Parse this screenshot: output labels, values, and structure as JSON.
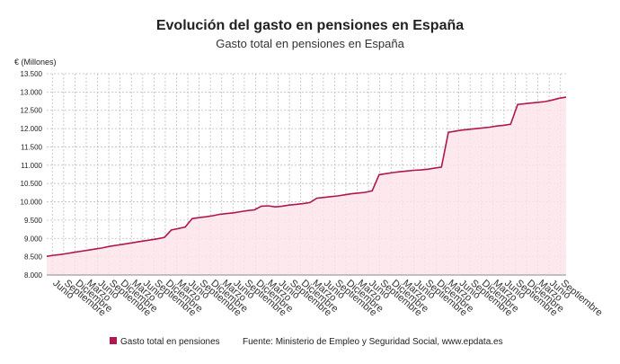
{
  "chart_data": {
    "type": "area",
    "title": "Evolución del gasto en pensiones en España",
    "subtitle": "Gasto total en pensiones en España",
    "ylabel": "€ (Millones)",
    "xlabel": "",
    "ylim": [
      8000,
      13500
    ],
    "yticks": [
      "8.000",
      "8.500",
      "9.000",
      "9.500",
      "10.000",
      "10.500",
      "11.000",
      "11.500",
      "12.000",
      "12.500",
      "13.000",
      "13.500"
    ],
    "yvalues": [
      8000,
      8500,
      9000,
      9500,
      10000,
      10500,
      11000,
      11500,
      12000,
      12500,
      13000,
      13500
    ],
    "xtick_labels": [
      "Junio",
      "Septiembre",
      "Diciembre",
      "Marzo",
      "Junio",
      "Septiembre",
      "Diciembre",
      "Marzo",
      "Junio",
      "Septiembre",
      "Diciembre",
      "Marzo",
      "Junio",
      "Septiembre",
      "Diciembre",
      "Marzo",
      "Junio",
      "Septiembre",
      "Diciembre",
      "Marzo",
      "Junio",
      "Septiembre",
      "Diciembre",
      "Marzo",
      "Junio",
      "Septiembre",
      "Diciembre",
      "Marzo",
      "Junio",
      "Septiembre",
      "Diciembre",
      "Marzo",
      "Junio",
      "Septiembre",
      "Diciembre",
      "Marzo",
      "Junio",
      "Septiembre",
      "Diciembre",
      "Marzo",
      "Junio",
      "Septiembre",
      "Diciembre",
      "Marzo",
      "Junio",
      "Septiembre"
    ],
    "grid": true,
    "legend_position": "bottom",
    "series": [
      {
        "name": "Gasto total en pensiones",
        "color": "#b0174e",
        "fill": "#fbe4ea",
        "values": [
          8510,
          8540,
          8560,
          8590,
          8620,
          8650,
          8680,
          8710,
          8740,
          8780,
          8810,
          8840,
          8870,
          8900,
          8930,
          8960,
          8990,
          9030,
          9230,
          9270,
          9310,
          9540,
          9570,
          9590,
          9620,
          9660,
          9680,
          9700,
          9730,
          9760,
          9780,
          9880,
          9890,
          9860,
          9880,
          9910,
          9930,
          9950,
          9980,
          10100,
          10120,
          10140,
          10160,
          10190,
          10220,
          10240,
          10260,
          10300,
          10740,
          10770,
          10800,
          10820,
          10840,
          10860,
          10870,
          10890,
          10920,
          10950,
          11900,
          11930,
          11960,
          11980,
          12000,
          12020,
          12040,
          12070,
          12090,
          12120,
          12660,
          12680,
          12700,
          12720,
          12740,
          12780,
          12830,
          12860
        ]
      }
    ]
  },
  "footer": {
    "source": "Fuente: Ministerio de Empleo y Seguridad Social, www.epdata.es"
  }
}
